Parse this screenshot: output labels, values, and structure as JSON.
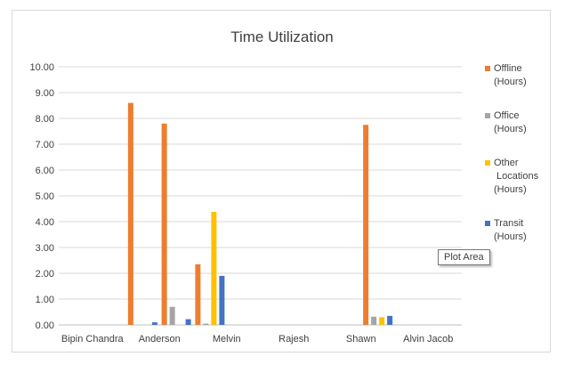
{
  "tooltip": "Plot Area",
  "chart_data": {
    "type": "bar",
    "title": "Time Utilization",
    "ylim": [
      0,
      10
    ],
    "y_ticks": [
      "0.00",
      "1.00",
      "2.00",
      "3.00",
      "4.00",
      "5.00",
      "6.00",
      "7.00",
      "8.00",
      "9.00",
      "10.00"
    ],
    "grid": true,
    "legend_position": "right",
    "x_labels": [
      "Bipin Chandra",
      "Anderson",
      "Melvin",
      "Rajesh",
      "Shawn",
      "Alvin Jacob"
    ],
    "categories": [
      "Bipin Chandra",
      "",
      "Anderson",
      "",
      "Melvin",
      "",
      "Rajesh",
      "",
      "Shawn",
      "",
      "Alvin Jacob",
      ""
    ],
    "series": [
      {
        "name": "Offline (Hours)",
        "legend_lines": [
          "Offline",
          "(Hours)"
        ],
        "color": "#ED7D31",
        "values": [
          0,
          0,
          8.6,
          7.8,
          2.35,
          0,
          0,
          0,
          0,
          7.75,
          0,
          0
        ]
      },
      {
        "name": "Office (Hours)",
        "legend_lines": [
          "Office",
          "(Hours)"
        ],
        "color": "#A5A5A5",
        "values": [
          0,
          0,
          0,
          0.7,
          0.05,
          0,
          0,
          0,
          0,
          0.32,
          0,
          0
        ]
      },
      {
        "name": "Other Locations (Hours)",
        "legend_lines": [
          "Other",
          "Locations",
          "(Hours)"
        ],
        "color": "#FFC000",
        "values": [
          0,
          0,
          0,
          0,
          4.38,
          0,
          0,
          0,
          0,
          0.3,
          0,
          0
        ]
      },
      {
        "name": "Transit (Hours)",
        "legend_lines": [
          "Transit",
          "(Hours)"
        ],
        "color": "#4472C4",
        "values": [
          0,
          0,
          0.1,
          0.22,
          1.9,
          0,
          0,
          0,
          0,
          0.35,
          0,
          0
        ]
      }
    ]
  }
}
